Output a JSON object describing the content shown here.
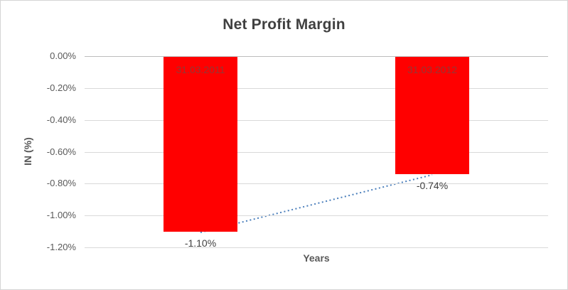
{
  "chart_data": {
    "type": "bar",
    "title": "Net Profit Margin",
    "categories": [
      "31.03.2011",
      "31.03.2012"
    ],
    "values": [
      -1.1,
      -0.74
    ],
    "value_labels": [
      "-1.10%",
      "-0.74%"
    ],
    "xlabel": "Years",
    "ylabel": "IN (%)",
    "ylim": [
      -1.2,
      0
    ],
    "yticks": [
      0,
      -0.2,
      -0.4,
      -0.6,
      -0.8,
      -1.0,
      -1.2
    ],
    "ytick_labels": [
      "0.00%",
      "-0.20%",
      "-0.40%",
      "-0.60%",
      "-0.80%",
      "-1.00%",
      "-1.20%"
    ],
    "grid": true,
    "legend": "none",
    "trendline": {
      "type": "linear",
      "style": "dotted"
    },
    "colors": {
      "bar": "#ff0000",
      "bar_label": "#963634",
      "data_label": "#404040",
      "axis_text": "#595959",
      "gridline": "#d9d9d9",
      "trendline": "#4a7ebb",
      "title": "#404040",
      "border": "#d5d5d5"
    }
  }
}
